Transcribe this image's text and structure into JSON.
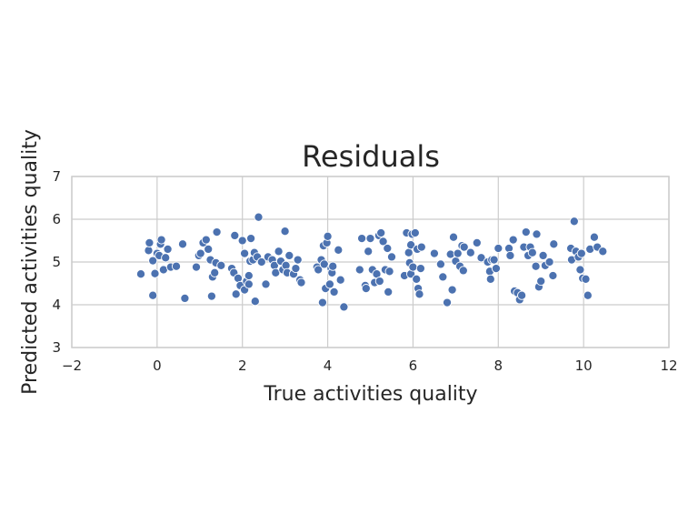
{
  "chart_data": {
    "type": "scatter",
    "title": "Residuals",
    "xlabel": "True activities quality",
    "ylabel": "Predicted activities quality",
    "xlim": [
      -2,
      12
    ],
    "ylim": [
      3,
      7
    ],
    "xticks": [
      -2,
      0,
      2,
      4,
      6,
      8,
      10,
      12
    ],
    "yticks": [
      3,
      4,
      5,
      6,
      7
    ],
    "grid": true,
    "point_color": "#4c72b0",
    "series": [
      {
        "points": [
          [
            -0.38,
            4.72
          ],
          [
            -0.2,
            5.27
          ],
          [
            -0.18,
            5.45
          ],
          [
            -0.1,
            5.03
          ],
          [
            -0.1,
            4.22
          ],
          [
            -0.05,
            4.73
          ],
          [
            0.0,
            5.2
          ],
          [
            0.05,
            5.15
          ],
          [
            0.08,
            5.42
          ],
          [
            0.1,
            5.52
          ],
          [
            0.15,
            4.82
          ],
          [
            0.2,
            5.1
          ],
          [
            0.25,
            5.3
          ],
          [
            0.32,
            4.88
          ],
          [
            0.45,
            4.9
          ],
          [
            0.6,
            5.42
          ],
          [
            0.65,
            4.15
          ],
          [
            0.92,
            4.88
          ],
          [
            0.98,
            5.15
          ],
          [
            1.02,
            5.2
          ],
          [
            1.08,
            5.45
          ],
          [
            1.15,
            5.52
          ],
          [
            1.2,
            5.3
          ],
          [
            1.25,
            5.05
          ],
          [
            1.28,
            4.2
          ],
          [
            1.3,
            4.65
          ],
          [
            1.35,
            4.75
          ],
          [
            1.38,
            4.98
          ],
          [
            1.4,
            5.7
          ],
          [
            1.5,
            4.92
          ],
          [
            1.75,
            4.85
          ],
          [
            1.8,
            4.75
          ],
          [
            1.82,
            5.62
          ],
          [
            1.85,
            4.25
          ],
          [
            1.9,
            4.62
          ],
          [
            1.95,
            4.45
          ],
          [
            2.0,
            5.5
          ],
          [
            2.05,
            4.35
          ],
          [
            2.05,
            5.2
          ],
          [
            2.1,
            4.55
          ],
          [
            2.15,
            4.68
          ],
          [
            2.15,
            4.48
          ],
          [
            2.18,
            5.02
          ],
          [
            2.2,
            5.55
          ],
          [
            2.25,
            5.05
          ],
          [
            2.28,
            5.22
          ],
          [
            2.3,
            4.08
          ],
          [
            2.35,
            5.12
          ],
          [
            2.38,
            6.05
          ],
          [
            2.45,
            5.0
          ],
          [
            2.55,
            4.48
          ],
          [
            2.6,
            5.12
          ],
          [
            2.7,
            5.05
          ],
          [
            2.75,
            4.92
          ],
          [
            2.78,
            4.75
          ],
          [
            2.85,
            5.25
          ],
          [
            2.9,
            5.02
          ],
          [
            2.95,
            4.82
          ],
          [
            3.0,
            5.72
          ],
          [
            3.02,
            4.92
          ],
          [
            3.05,
            4.75
          ],
          [
            3.1,
            5.15
          ],
          [
            3.2,
            4.72
          ],
          [
            3.25,
            4.85
          ],
          [
            3.3,
            5.05
          ],
          [
            3.35,
            4.58
          ],
          [
            3.38,
            4.52
          ],
          [
            3.75,
            4.88
          ],
          [
            3.78,
            4.82
          ],
          [
            3.85,
            5.05
          ],
          [
            3.88,
            4.05
          ],
          [
            3.9,
            5.38
          ],
          [
            3.92,
            4.95
          ],
          [
            3.95,
            4.38
          ],
          [
            3.98,
            5.45
          ],
          [
            4.0,
            5.6
          ],
          [
            4.05,
            4.48
          ],
          [
            4.08,
            4.85
          ],
          [
            4.1,
            4.75
          ],
          [
            4.12,
            4.9
          ],
          [
            4.15,
            4.3
          ],
          [
            4.25,
            5.28
          ],
          [
            4.3,
            4.58
          ],
          [
            4.38,
            3.95
          ],
          [
            4.75,
            4.82
          ],
          [
            4.8,
            5.55
          ],
          [
            4.88,
            4.45
          ],
          [
            4.9,
            4.38
          ],
          [
            4.95,
            5.25
          ],
          [
            5.0,
            5.55
          ],
          [
            5.05,
            4.82
          ],
          [
            5.1,
            4.52
          ],
          [
            5.15,
            4.72
          ],
          [
            5.2,
            5.62
          ],
          [
            5.22,
            4.55
          ],
          [
            5.25,
            5.68
          ],
          [
            5.3,
            5.48
          ],
          [
            5.35,
            4.82
          ],
          [
            5.4,
            5.32
          ],
          [
            5.42,
            4.3
          ],
          [
            5.45,
            4.78
          ],
          [
            5.5,
            5.12
          ],
          [
            5.8,
            4.68
          ],
          [
            5.85,
            5.68
          ],
          [
            5.9,
            5.22
          ],
          [
            5.92,
            4.98
          ],
          [
            5.95,
            4.72
          ],
          [
            5.95,
            5.4
          ],
          [
            5.98,
            5.65
          ],
          [
            6.0,
            4.88
          ],
          [
            6.05,
            5.68
          ],
          [
            6.08,
            4.6
          ],
          [
            6.1,
            5.3
          ],
          [
            6.12,
            4.38
          ],
          [
            6.15,
            4.25
          ],
          [
            6.18,
            4.85
          ],
          [
            6.2,
            5.35
          ],
          [
            6.5,
            5.2
          ],
          [
            6.65,
            4.95
          ],
          [
            6.7,
            4.65
          ],
          [
            6.8,
            4.05
          ],
          [
            6.88,
            5.18
          ],
          [
            6.92,
            4.35
          ],
          [
            6.95,
            5.58
          ],
          [
            7.0,
            5.02
          ],
          [
            7.05,
            5.2
          ],
          [
            7.1,
            4.9
          ],
          [
            7.15,
            5.38
          ],
          [
            7.18,
            4.8
          ],
          [
            7.2,
            5.35
          ],
          [
            7.35,
            5.22
          ],
          [
            7.5,
            5.45
          ],
          [
            7.6,
            5.1
          ],
          [
            7.75,
            5.0
          ],
          [
            7.8,
            4.78
          ],
          [
            7.82,
            4.6
          ],
          [
            7.85,
            5.05
          ],
          [
            7.9,
            5.05
          ],
          [
            7.95,
            4.85
          ],
          [
            8.0,
            5.32
          ],
          [
            8.25,
            5.32
          ],
          [
            8.28,
            5.15
          ],
          [
            8.35,
            5.52
          ],
          [
            8.38,
            4.32
          ],
          [
            8.45,
            4.28
          ],
          [
            8.5,
            4.12
          ],
          [
            8.55,
            4.22
          ],
          [
            8.6,
            5.35
          ],
          [
            8.65,
            5.7
          ],
          [
            8.7,
            5.15
          ],
          [
            8.75,
            5.35
          ],
          [
            8.8,
            5.22
          ],
          [
            8.88,
            4.9
          ],
          [
            8.9,
            5.65
          ],
          [
            8.95,
            4.42
          ],
          [
            9.0,
            4.55
          ],
          [
            9.05,
            5.15
          ],
          [
            9.1,
            4.92
          ],
          [
            9.2,
            5.0
          ],
          [
            9.28,
            4.68
          ],
          [
            9.3,
            5.42
          ],
          [
            9.7,
            5.32
          ],
          [
            9.72,
            5.05
          ],
          [
            9.78,
            5.95
          ],
          [
            9.82,
            5.25
          ],
          [
            9.88,
            5.12
          ],
          [
            9.92,
            4.82
          ],
          [
            9.95,
            5.2
          ],
          [
            9.98,
            4.62
          ],
          [
            10.05,
            4.6
          ],
          [
            10.1,
            4.22
          ],
          [
            10.15,
            5.3
          ],
          [
            10.25,
            5.58
          ],
          [
            10.32,
            5.35
          ],
          [
            10.45,
            5.25
          ]
        ]
      }
    ]
  }
}
